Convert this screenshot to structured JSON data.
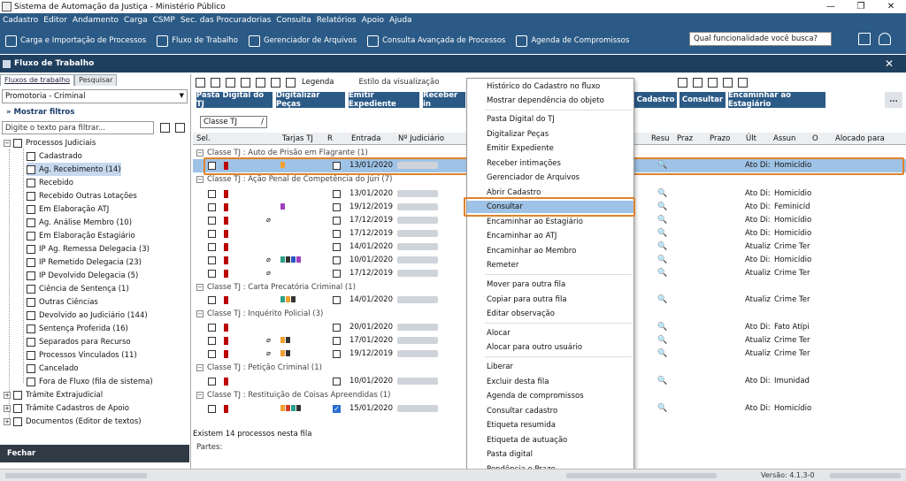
{
  "window": {
    "title": "Sistema de Automação da Justiça - Ministério Público"
  },
  "menu": [
    "Cadastro",
    "Editor",
    "Andamento",
    "Carga",
    "CSMP",
    "Sec. das Procuradorias",
    "Consulta",
    "Relatórios",
    "Apoio",
    "Ajuda"
  ],
  "toolbar": {
    "items": [
      "Carga e Importação de Processos",
      "Fluxo de Trabalho",
      "Gerenciador de Arquivos",
      "Consulta Avançada de Processos",
      "Agenda de Compromissos"
    ],
    "search_placeholder": "Qual funcionalidade você busca?"
  },
  "panel": {
    "title": "Fluxo de Trabalho"
  },
  "left": {
    "tabs": [
      "Fluxos de trabalho",
      "Pesquisar"
    ],
    "combo": "Promotoria - Criminal",
    "show_filters": "Mostrar filtros",
    "filter_placeholder": "Digite o texto para filtrar...",
    "root": "Processos Judiciais",
    "items": [
      "Cadastrado",
      "Ag. Recebimento (14)",
      "Recebido",
      "Recebido Outras Lotações",
      "Em Elaboração ATJ",
      "Ag. Análise Membro (10)",
      "Em Elaboração Estagiário",
      "IP Ag. Remessa Delegacia (3)",
      "IP Remetido Delegacia (23)",
      "IP Devolvido Delegacia (5)",
      "Ciência de Sentença (1)",
      "Outras Ciências",
      "Devolvido ao Judiciário (144)",
      "Sentença Proferida (16)",
      "Separados para Recurso",
      "Processos Vinculados (11)",
      "Cancelado",
      "Fora de Fluxo (fila de sistema)"
    ],
    "others": [
      "Trâmite Extrajudicial",
      "Trâmite Cadastros de Apoio",
      "Documentos (Editor de textos)"
    ],
    "close_label": "Fechar"
  },
  "right": {
    "legend": "Legenda",
    "style_label": "Estilo da visualização",
    "buttons": [
      "Pasta Digital do TJ",
      "Digitalizar Peças",
      "Emitir Expediente",
      "Receber in",
      "Cadastro",
      "Consultar",
      "Encaminhar ao Estagiário",
      "..."
    ],
    "group_field": "Classe TJ",
    "columns": [
      "Sel.",
      "Tarjas TJ",
      "R",
      "Entrada",
      "Nº Judiciário",
      "Resu",
      "Praz",
      "Prazo",
      "Últ",
      "Assun",
      "O",
      "Alocado para"
    ],
    "groups": [
      {
        "title": "Classe TJ : Auto de Prisão em Flagrante  (1)",
        "rows": [
          {
            "date": "13/01/2020",
            "ato": "Ato Di:",
            "assunto": "Homicídio"
          }
        ]
      },
      {
        "title": "Classe TJ : Ação Penal de Competência do Júri  (7)",
        "rows": [
          {
            "date": "13/01/2020",
            "ato": "Ato Di:",
            "assunto": "Homicídio"
          },
          {
            "date": "19/12/2019",
            "ato": "Ato Di:",
            "assunto": "Feminicíd"
          },
          {
            "date": "17/12/2019",
            "ato": "Ato Di:",
            "assunto": "Homicídio"
          },
          {
            "date": "17/12/2019",
            "ato": "Ato Di:",
            "assunto": "Homicídio"
          },
          {
            "date": "14/01/2020",
            "ato": "Atualiz",
            "assunto": "Crime Ter"
          },
          {
            "date": "10/01/2020",
            "ato": "Ato Di:",
            "assunto": "Homicídio"
          },
          {
            "date": "17/12/2019",
            "ato": "Atualiz",
            "assunto": "Crime Ter"
          }
        ]
      },
      {
        "title": "Classe TJ : Carta Precatória Criminal  (1)",
        "rows": [
          {
            "date": "14/01/2020",
            "ato": "Atualiz",
            "assunto": "Crime Ter"
          }
        ]
      },
      {
        "title": "Classe TJ : Inquérito Policial  (3)",
        "rows": [
          {
            "date": "20/01/2020",
            "ato": "Ato Di:",
            "assunto": "Fato Atípi"
          },
          {
            "date": "17/01/2020",
            "ato": "Atualiz",
            "assunto": "Crime Ter"
          },
          {
            "date": "19/12/2019",
            "ato": "Atualiz",
            "assunto": "Crime Ter"
          }
        ]
      },
      {
        "title": "Classe TJ : Petição Criminal  (1)",
        "rows": [
          {
            "date": "10/01/2020",
            "ato": "Ato Di:",
            "assunto": "Imunidad"
          }
        ]
      },
      {
        "title": "Classe TJ : Restituição de Coisas Apreendidas  (1)",
        "rows": [
          {
            "date": "15/01/2020",
            "ato": "Ato Di:",
            "assunto": "Homicídio"
          }
        ]
      }
    ],
    "footer": "Existem 14 processos nesta fila",
    "partes_label": "Partes:"
  },
  "context_menu": [
    "Histórico do Cadastro no fluxo",
    "Mostrar dependência do objeto",
    "Pasta Digital do TJ",
    "Digitalizar Peças",
    "Emitir Expediente",
    "Receber intimações",
    "Gerenciador de Arquivos",
    "Abrir Cadastro",
    "Consultar",
    "Encaminhar ao Estagiário",
    "Encaminhar ao ATJ",
    "Encaminhar ao Membro",
    "Remeter",
    "Mover para outra fila",
    "Copiar para outra fila",
    "Editar observação",
    "Alocar",
    "Alocar para outro usuário",
    "Liberar",
    "Excluir desta fila",
    "Agenda de compromissos",
    "Consultar cadastro",
    "Etiqueta resumida",
    "Etiqueta de autuação",
    "Pasta digital",
    "Pendência e Prazo"
  ],
  "status": {
    "version": "Versão: 4.1.3-0"
  }
}
